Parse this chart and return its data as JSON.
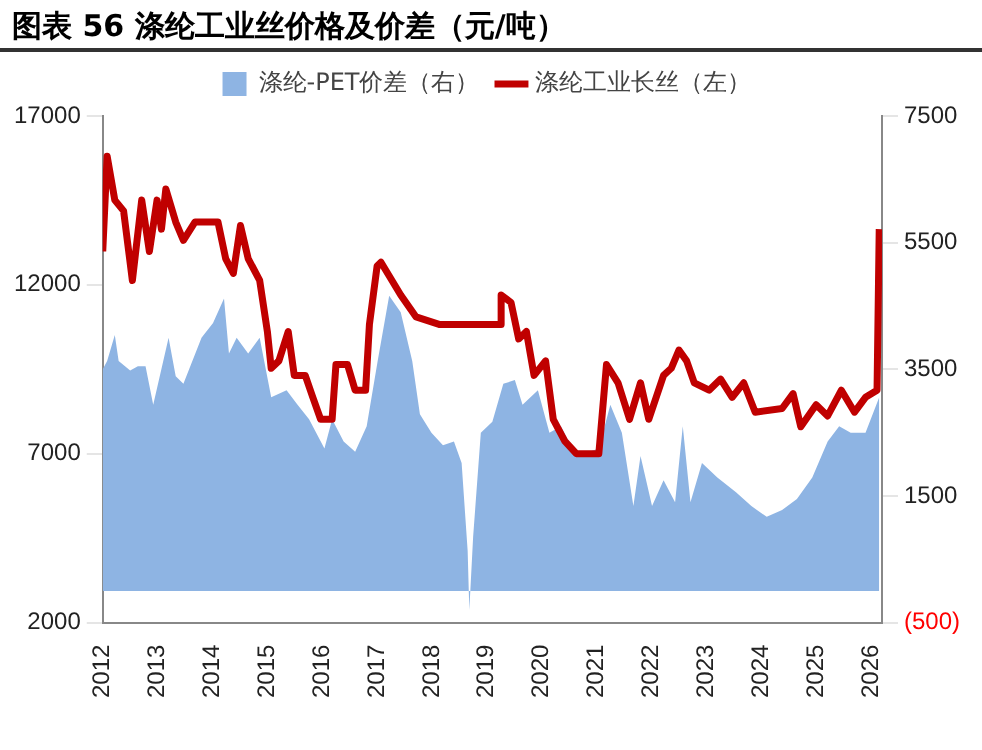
{
  "chart_data": {
    "type": "line",
    "title": "图表 56 涤纶工业丝价格及价差（元/吨）",
    "xlim": [
      2012,
      2026.2
    ],
    "xticks": [
      2012,
      2013,
      2014,
      2015,
      2016,
      2017,
      2018,
      2019,
      2020,
      2021,
      2022,
      2023,
      2024,
      2025,
      2026
    ],
    "ylim": [
      2000,
      17000
    ],
    "yticks": [
      2000,
      7000,
      12000,
      17000
    ],
    "y2lim": [
      -500,
      7500
    ],
    "y2ticks": [
      {
        "value": -500,
        "label": "(500)"
      },
      1500,
      3500,
      5500,
      7500
    ],
    "legend": "top",
    "grid": false,
    "series": [
      {
        "name": "涤纶-PET价差（右）",
        "type": "area",
        "axis": "y2",
        "color": "#8eb4e3",
        "x": [
          2012,
          2012.08,
          2012.22,
          2012.29,
          2012.5,
          2012.64,
          2012.78,
          2012.92,
          2013.2,
          2013.33,
          2013.47,
          2013.8,
          2014.01,
          2014.21,
          2014.3,
          2014.44,
          2014.65,
          2014.86,
          2015.07,
          2015.35,
          2015.55,
          2015.76,
          2016.04,
          2016.18,
          2016.39,
          2016.6,
          2016.81,
          2017.01,
          2017.22,
          2017.43,
          2017.64,
          2017.78,
          2017.99,
          2018.2,
          2018.4,
          2018.54,
          2018.65,
          2018.68,
          2018.75,
          2018.89,
          2019.1,
          2019.3,
          2019.51,
          2019.65,
          2019.93,
          2020.14,
          2020.35,
          2020.63,
          2021.04,
          2021.25,
          2021.46,
          2021.67,
          2021.8,
          2022.01,
          2022.22,
          2022.43,
          2022.57,
          2022.71,
          2022.92,
          2023.2,
          2023.54,
          2023.82,
          2024.1,
          2024.38,
          2024.65,
          2024.93,
          2025.21,
          2025.42,
          2025.63,
          2025.9,
          2026.15
        ],
        "values": [
          3500,
          3630,
          4040,
          3630,
          3480,
          3550,
          3550,
          2940,
          4000,
          3390,
          3270,
          4000,
          4230,
          4620,
          3750,
          4000,
          3750,
          4000,
          3060,
          3170,
          2940,
          2710,
          2250,
          2710,
          2360,
          2200,
          2600,
          3630,
          4660,
          4400,
          3630,
          2790,
          2500,
          2300,
          2360,
          2020,
          630,
          -300,
          860,
          2500,
          2670,
          3270,
          3330,
          2940,
          3170,
          2500,
          2600,
          2130,
          2250,
          2940,
          2500,
          1340,
          2130,
          1340,
          1750,
          1400,
          2600,
          1400,
          2020,
          1790,
          1560,
          1340,
          1170,
          1280,
          1450,
          1790,
          2360,
          2600,
          2500,
          2500,
          3060
        ]
      },
      {
        "name": "涤纶工业长丝（左）",
        "type": "line",
        "axis": "y",
        "color": "#c00000",
        "x": [
          2012,
          2012.08,
          2012.22,
          2012.38,
          2012.54,
          2012.71,
          2012.85,
          2012.99,
          2013.07,
          2013.15,
          2013.33,
          2013.47,
          2013.68,
          2014.1,
          2014.24,
          2014.38,
          2014.51,
          2014.65,
          2014.86,
          2015.0,
          2015.07,
          2015.21,
          2015.38,
          2015.49,
          2015.69,
          2015.83,
          2015.97,
          2016.18,
          2016.25,
          2016.46,
          2016.6,
          2016.79,
          2016.86,
          2017.0,
          2017.07,
          2017.43,
          2017.71,
          2018.13,
          2019.24,
          2019.26,
          2019.44,
          2019.58,
          2019.72,
          2019.86,
          2020.07,
          2020.21,
          2020.42,
          2020.63,
          2021.04,
          2021.18,
          2021.39,
          2021.6,
          2021.8,
          2021.95,
          2022.22,
          2022.36,
          2022.5,
          2022.64,
          2022.78,
          2023.05,
          2023.26,
          2023.47,
          2023.68,
          2023.89,
          2024.38,
          2024.58,
          2024.72,
          2025.0,
          2025.21,
          2025.46,
          2025.7,
          2025.9,
          2026.11,
          2026.15
        ],
        "values": [
          12990,
          15810,
          14510,
          14190,
          12130,
          14510,
          12990,
          14510,
          13650,
          14840,
          13860,
          13320,
          13860,
          13860,
          12780,
          12340,
          13760,
          12780,
          12130,
          10620,
          9530,
          9750,
          10620,
          9320,
          9320,
          8660,
          8020,
          8020,
          9640,
          9640,
          8880,
          8880,
          10830,
          12560,
          12670,
          11700,
          11050,
          10830,
          10830,
          11700,
          11480,
          10400,
          10620,
          9320,
          9750,
          8020,
          7370,
          7000,
          7000,
          9640,
          9100,
          8020,
          9100,
          8020,
          9320,
          9530,
          10070,
          9750,
          9100,
          8880,
          9210,
          8670,
          9100,
          8230,
          8340,
          8780,
          7800,
          8450,
          8120,
          8880,
          8230,
          8670,
          8880,
          13650
        ]
      }
    ]
  }
}
